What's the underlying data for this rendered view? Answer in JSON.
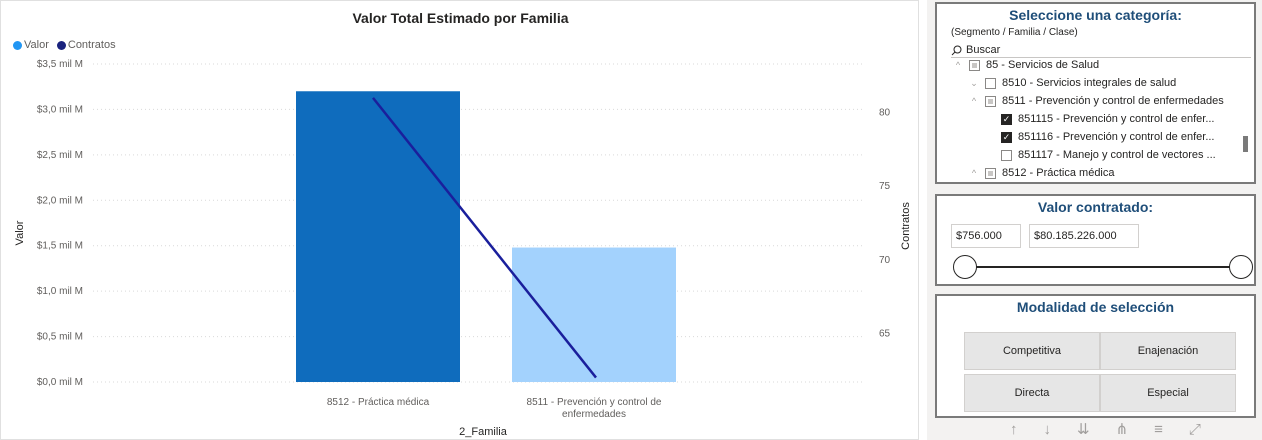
{
  "chart": {
    "title": "Valor Total Estimado por Familia",
    "legend": [
      {
        "label": "Valor",
        "color": "#2196f3"
      },
      {
        "label": "Contratos",
        "color": "#1a237e"
      }
    ],
    "y_left_title": "Valor",
    "y_right_title": "Contratos",
    "x_title": "2_Familia"
  },
  "chart_data": {
    "type": "bar",
    "title": "Valor Total Estimado por Familia",
    "categories": [
      "8512 - Práctica médica",
      "8511 - Prevención y control de enfermedades"
    ],
    "category_lines": [
      [
        "8512 - Práctica médica"
      ],
      [
        "8511 - Prevención y control de",
        "enfermedades"
      ]
    ],
    "series": [
      {
        "name": "Valor",
        "type": "bar",
        "axis": "left",
        "values": [
          3.2,
          1.48
        ],
        "colors": [
          "#0f6cbd",
          "#a3d2fd"
        ]
      },
      {
        "name": "Contratos",
        "type": "line",
        "axis": "right",
        "values": [
          81,
          62
        ],
        "color": "#1a1f9c"
      }
    ],
    "xlabel": "2_Familia",
    "ylabel": "Valor",
    "y2label": "Contratos",
    "ylim": [
      0,
      3.5
    ],
    "y2lim": [
      61.7,
      83.3
    ],
    "yticks": [
      0,
      0.5,
      1.0,
      1.5,
      2.0,
      2.5,
      3.0,
      3.5
    ],
    "ytick_labels": [
      "$0,0 mil M",
      "$0,5 mil M",
      "$1,0 mil M",
      "$1,5 mil M",
      "$2,0 mil M",
      "$2,5 mil M",
      "$3,0 mil M",
      "$3,5 mil M"
    ],
    "y2ticks": [
      65,
      70,
      75,
      80
    ],
    "y2tick_labels": [
      "65",
      "70",
      "75",
      "80"
    ],
    "grid": true,
    "legend_position": "top-left"
  },
  "category_slicer": {
    "title": "Seleccione una categoría:",
    "subtitle": "(Segmento / Familia / Clase)",
    "search_placeholder": "Buscar",
    "items": [
      {
        "label": "85 - Servicios de Salud",
        "state": "partial",
        "chev": "^"
      },
      {
        "label": "8510 - Servicios integrales de salud",
        "state": "unchecked",
        "chev": "v"
      },
      {
        "label": "8511 - Prevención y control de enfermedades",
        "state": "partial",
        "chev": "^"
      },
      {
        "label": "851115 - Prevención y control de enfer...",
        "state": "checked",
        "chev": ""
      },
      {
        "label": "851116 - Prevención y control de enfer...",
        "state": "checked",
        "chev": ""
      },
      {
        "label": "851117 - Manejo y control de vectores ...",
        "state": "unchecked",
        "chev": ""
      },
      {
        "label": "8512 - Práctica médica",
        "state": "partial",
        "chev": "^"
      }
    ]
  },
  "value_slicer": {
    "title": "Valor contratado:",
    "min_value": "$756.000",
    "max_value": "$80.185.226.000"
  },
  "mode_slicer": {
    "title": "Modalidad de selección",
    "options": [
      "Competitiva",
      "Enajenación",
      "Directa",
      "Especial"
    ]
  },
  "toolbar": {
    "icons": [
      "arrow-up-icon",
      "arrow-down-icon",
      "double-arrow-down-icon",
      "expand-hierarchy-icon",
      "filter-icon",
      "focus-mode-icon"
    ]
  }
}
